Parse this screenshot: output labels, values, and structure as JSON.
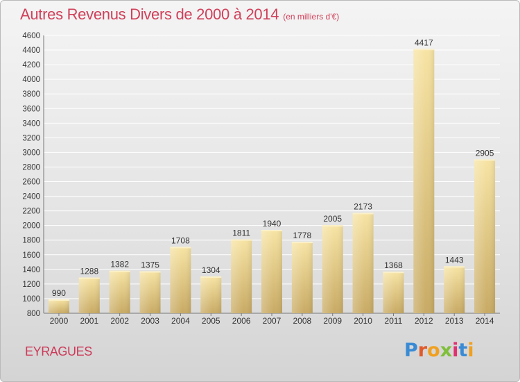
{
  "title": "Autres Revenus Divers de 2000 à 2014",
  "unit_note": "(en milliers d'€)",
  "place": "EYRAGUES",
  "logo": {
    "text": "Proxiti",
    "colors": [
      "#3a8bd4",
      "#e05a2a",
      "#f0a020",
      "#7fbf3a",
      "#e03070",
      "#3a8bd4",
      "#f0a020"
    ]
  },
  "colors": {
    "bar_light": "#f7e4a4",
    "bar_dark": "#c8aa64",
    "title": "#d0405a",
    "grid": "#ffffff"
  },
  "chart_data": {
    "type": "bar",
    "categories": [
      "2000",
      "2001",
      "2002",
      "2003",
      "2004",
      "2005",
      "2006",
      "2007",
      "2008",
      "2009",
      "2010",
      "2011",
      "2012",
      "2013",
      "2014"
    ],
    "values": [
      990,
      1288,
      1382,
      1375,
      1708,
      1304,
      1811,
      1940,
      1778,
      2005,
      2173,
      1368,
      4417,
      1443,
      2905
    ],
    "ylim": [
      800,
      4600
    ],
    "yticks": [
      800,
      1000,
      1200,
      1400,
      1600,
      1800,
      2000,
      2200,
      2400,
      2600,
      2800,
      3000,
      3200,
      3400,
      3600,
      3800,
      4000,
      4200,
      4400,
      4600
    ],
    "grid": true,
    "title": "Autres Revenus Divers de 2000 à 2014"
  }
}
